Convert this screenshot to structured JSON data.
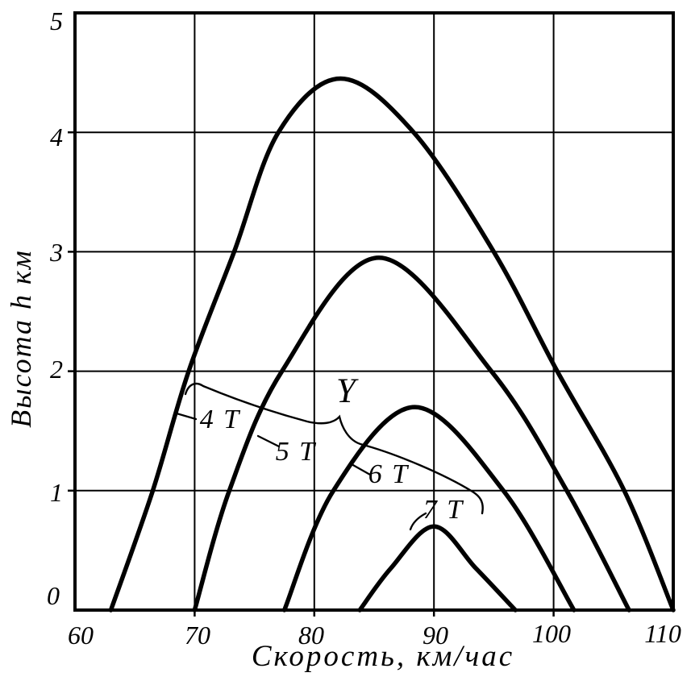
{
  "figure": {
    "background": "#ffffff",
    "ink": "#000000"
  },
  "chart_data": {
    "type": "line",
    "title": "",
    "xlabel": "Скорость, км/час",
    "ylabel": "Высота h км",
    "xlim": [
      60,
      110
    ],
    "ylim": [
      0,
      5
    ],
    "x_ticks": [
      "60",
      "70",
      "80",
      "90",
      "100",
      "110"
    ],
    "y_ticks": [
      "0",
      "1",
      "2",
      "3",
      "4",
      "5"
    ],
    "x_tick_values": [
      60,
      70,
      80,
      90,
      100,
      110
    ],
    "y_tick_values": [
      0,
      1,
      2,
      3,
      4,
      5
    ],
    "grid": "on",
    "legend": "inline curve labels connected by a brace leader pointing to group label",
    "group_label": "Y",
    "series": [
      {
        "name": "4 Т",
        "weight_tonnes": 4,
        "peak": {
          "x": 82.2,
          "h": 4.45
        },
        "points": [
          [
            63,
            0
          ],
          [
            66.5,
            1
          ],
          [
            69.5,
            2
          ],
          [
            73.3,
            3
          ],
          [
            77,
            4
          ],
          [
            82.2,
            4.45
          ],
          [
            88.3,
            4
          ],
          [
            95,
            3
          ],
          [
            100.3,
            2
          ],
          [
            105.9,
            1
          ],
          [
            110,
            0
          ]
        ]
      },
      {
        "name": "5 Т",
        "weight_tonnes": 5,
        "peak": {
          "x": 85.4,
          "h": 2.95
        },
        "points": [
          [
            70,
            0
          ],
          [
            72.9,
            1
          ],
          [
            77.3,
            2
          ],
          [
            85.4,
            2.95
          ],
          [
            94.8,
            2
          ],
          [
            101.1,
            1
          ],
          [
            106.3,
            0
          ]
        ]
      },
      {
        "name": "6 Т",
        "weight_tonnes": 6,
        "peak": {
          "x": 88.4,
          "h": 1.7
        },
        "points": [
          [
            77.5,
            0
          ],
          [
            81.6,
            1
          ],
          [
            88.4,
            1.7
          ],
          [
            95.8,
            1
          ],
          [
            101.7,
            0
          ]
        ]
      },
      {
        "name": "7 Т",
        "weight_tonnes": 7,
        "peak": {
          "x": 90,
          "h": 0.7
        },
        "points": [
          [
            83.8,
            0
          ],
          [
            86.4,
            0.35
          ],
          [
            90,
            0.7
          ],
          [
            93.5,
            0.35
          ],
          [
            96.8,
            0
          ]
        ]
      }
    ]
  }
}
